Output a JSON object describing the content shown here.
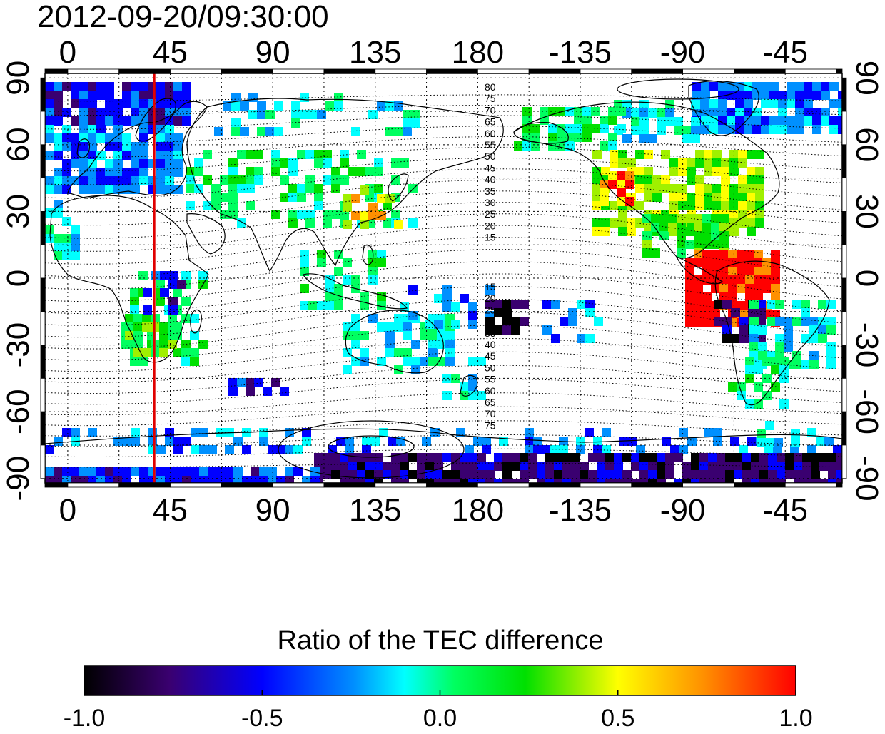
{
  "title": "2012-09-20/09:30:00",
  "map": {
    "top_ticks": [
      "0",
      "45",
      "90",
      "135",
      "180",
      "-135",
      "-90",
      "-45"
    ],
    "bottom_ticks": [
      "0",
      "45",
      "90",
      "135",
      "180",
      "-135",
      "-90",
      "-45"
    ],
    "left_ticks": [
      "90",
      "60",
      "30",
      "0",
      "-30",
      "-60",
      "-90"
    ],
    "right_ticks": [
      "90",
      "60",
      "30",
      "0",
      "-30",
      "-60",
      "-90"
    ],
    "longitude_range": [
      -10,
      340
    ],
    "latitude_range": [
      -92,
      92
    ],
    "grid": "dotted",
    "coastlines": true,
    "marker_line_longitude": 38,
    "marker_line_color": "#e00000",
    "contour_labels_north": [
      "80",
      "75",
      "70",
      "65",
      "60",
      "55",
      "50",
      "45",
      "40",
      "35",
      "30",
      "25",
      "20",
      "15"
    ],
    "contour_labels_south": [
      "15",
      "20",
      "25",
      "30",
      "35",
      "40",
      "45",
      "50",
      "55",
      "60",
      "65",
      "70",
      "75"
    ]
  },
  "colorbar": {
    "title": "Ratio of the TEC difference",
    "tick_labels": [
      "-1.0",
      "-0.5",
      "0.0",
      "0.5",
      "1.0"
    ],
    "range": [
      -1.0,
      1.0
    ],
    "colors": [
      "#000000",
      "#3a0070",
      "#0000ff",
      "#0090ff",
      "#00ffff",
      "#00ff60",
      "#00e000",
      "#a0f000",
      "#ffff00",
      "#ff9000",
      "#ff0000"
    ]
  }
}
